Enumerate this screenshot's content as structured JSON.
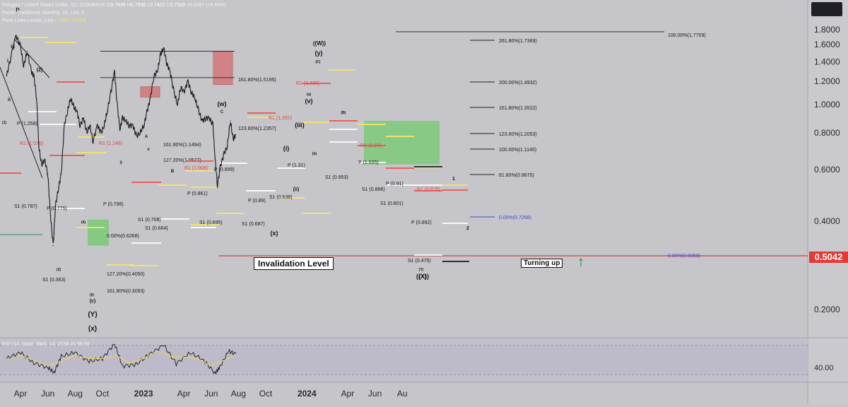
{
  "header": {
    "symbol": "Polygon / United States Dollar, 1D, COINBASE",
    "o_label": "O",
    "o": "0.7436",
    "h_label": "H",
    "h": "0.7936",
    "l_label": "L",
    "l": "0.7422",
    "c_label": "C",
    "c": "0.7933",
    "change": "+0.0497 (+6.68%)",
    "pivot": "Pivots Traditional, Monthly, 15, Left, 2",
    "levels_label": "Pivot Lines Levels (1M)",
    "level_a": "0.9091",
    "level_b": "0.5059"
  },
  "annotations": {
    "invalidation": "Invalidation Level",
    "turning_up": "Turning up",
    "arrow": "↑"
  },
  "current_price_label": "0.5042",
  "colors": {
    "background": "#c5c5ca",
    "price_line": "#1a1a1a",
    "red_line": "#e53935",
    "pivot_yellow": "#f6e66a",
    "pivot_white": "#ffffff",
    "pivot_red": "#f05050",
    "green_box": "#6fca6a",
    "red_box": "#d94c4c",
    "rsi_line": "#1a1a1a",
    "rsi_sma": "#e9d462",
    "rsi_band": "#b7b2c9"
  },
  "chart_data": [
    {
      "type": "line",
      "title": "",
      "y_scale": "log",
      "ylim": [
        0.15,
        2.0
      ],
      "y_ticks": [
        1.8,
        1.6,
        1.4,
        1.2,
        1.0,
        0.8,
        0.6,
        0.4,
        0.2
      ],
      "y_tick_labels": [
        "1.8000",
        "1.6000",
        "1.4000",
        "1.2000",
        "1.0000",
        "0.8000",
        "0.6000",
        "0.4000",
        "0.2000"
      ],
      "x_ticks": [
        "2022-04-01",
        "2022-06-01",
        "2022-08-01",
        "2022-10-01",
        "2023-01-01",
        "2023-04-01",
        "2023-06-01",
        "2023-08-01",
        "2023-10-01",
        "2024-01-01",
        "2024-04-01",
        "2024-06-01",
        "2024-08-01"
      ],
      "x_tick_labels": [
        "Apr",
        "Jun",
        "Aug",
        "Oct",
        "2023",
        "Apr",
        "Jun",
        "Aug",
        "Oct",
        "2024",
        "Apr",
        "Jun",
        "Au"
      ],
      "series": [
        {
          "x": [
            "2022-03-01",
            "2022-03-10",
            "2022-03-22",
            "2022-04-01",
            "2022-04-08",
            "2022-04-16",
            "2022-04-25",
            "2022-05-01",
            "2022-05-07",
            "2022-05-12",
            "2022-05-18",
            "2022-05-25",
            "2022-06-01",
            "2022-06-07",
            "2022-06-13",
            "2022-06-18",
            "2022-06-25",
            "2022-07-01",
            "2022-07-08",
            "2022-07-15",
            "2022-07-22",
            "2022-07-29",
            "2022-08-05",
            "2022-08-12",
            "2022-08-20",
            "2022-08-27",
            "2022-09-03",
            "2022-09-10",
            "2022-09-20",
            "2022-09-28",
            "2022-10-05",
            "2022-10-12",
            "2022-10-20",
            "2022-10-28",
            "2022-11-02",
            "2022-11-09",
            "2022-11-15",
            "2022-11-22",
            "2022-11-30",
            "2022-12-08",
            "2022-12-16",
            "2022-12-24",
            "2023-01-02",
            "2023-01-09",
            "2023-01-16",
            "2023-01-24",
            "2023-02-01",
            "2023-02-08",
            "2023-02-15",
            "2023-02-22",
            "2023-03-01",
            "2023-03-10",
            "2023-03-18",
            "2023-03-25",
            "2023-04-01",
            "2023-04-10",
            "2023-04-18",
            "2023-04-26",
            "2023-05-04",
            "2023-05-12",
            "2023-05-20",
            "2023-05-28",
            "2023-06-05",
            "2023-06-10",
            "2023-06-15",
            "2023-06-22",
            "2023-06-30",
            "2023-07-07",
            "2023-07-14",
            "2023-07-20",
            "2023-07-26"
          ],
          "values": [
            1.25,
            1.45,
            1.72,
            1.58,
            1.35,
            1.52,
            1.3,
            1.25,
            1.05,
            0.72,
            0.62,
            0.65,
            0.58,
            0.42,
            0.33,
            0.45,
            0.52,
            0.58,
            0.85,
            0.95,
            1.05,
            0.98,
            0.95,
            0.85,
            0.9,
            0.8,
            0.85,
            0.75,
            0.85,
            0.8,
            0.85,
            0.95,
            1.1,
            1.3,
            1.05,
            0.82,
            0.9,
            0.88,
            0.85,
            0.85,
            0.78,
            0.8,
            0.85,
            0.95,
            1.05,
            1.25,
            1.3,
            1.48,
            1.56,
            1.38,
            1.3,
            1.1,
            1.0,
            1.15,
            1.1,
            1.2,
            1.1,
            1.05,
            0.95,
            0.88,
            0.9,
            0.9,
            0.85,
            0.65,
            0.53,
            0.62,
            0.68,
            0.72,
            0.88,
            0.76,
            0.79
          ]
        }
      ]
    },
    {
      "type": "line",
      "title": "",
      "legend": "RSI (14, close, SMA, 14, 2) 58.41 56.56",
      "ylim": [
        20,
        80
      ],
      "y_ticks": [
        40
      ],
      "y_tick_labels": [
        "40.00"
      ],
      "series": [
        {
          "x": [
            "2022-03-01",
            "2022-04-01",
            "2022-05-01",
            "2022-06-01",
            "2022-06-15",
            "2022-07-01",
            "2022-08-01",
            "2022-09-01",
            "2022-10-01",
            "2022-10-28",
            "2022-11-15",
            "2022-12-15",
            "2023-01-15",
            "2023-02-15",
            "2023-03-15",
            "2023-04-15",
            "2023-05-15",
            "2023-06-10",
            "2023-06-20",
            "2023-07-10",
            "2023-07-26"
          ],
          "values": [
            52,
            60,
            46,
            40,
            33,
            55,
            60,
            48,
            52,
            72,
            42,
            44,
            58,
            70,
            45,
            60,
            50,
            32,
            40,
            62,
            58
          ]
        },
        {
          "x": [
            "2022-03-01",
            "2022-04-01",
            "2022-05-01",
            "2022-06-01",
            "2022-07-01",
            "2022-08-01",
            "2022-09-01",
            "2022-10-01",
            "2022-11-01",
            "2022-12-01",
            "2023-01-01",
            "2023-02-01",
            "2023-03-01",
            "2023-04-01",
            "2023-05-01",
            "2023-06-01",
            "2023-07-01",
            "2023-07-26"
          ],
          "values": [
            50,
            56,
            50,
            42,
            48,
            56,
            52,
            52,
            56,
            46,
            52,
            62,
            55,
            54,
            52,
            42,
            50,
            57
          ]
        }
      ]
    }
  ],
  "fib_labels": [
    "100.00%(1.7709)",
    "261.80%(1.7369)",
    "200.00%(1.4932)",
    "161.80%(1.3522)",
    "123.60%(1.2053)",
    "100.00%(1.1145)",
    "61.80%(0.9675)",
    "0.00%(0.7298)",
    "0.00%(0.5068)",
    "161.80%(1.5195)",
    "123.60%(1.2357)",
    "161.80%(1.1494)",
    "127.20%(1.0577)",
    "0.00%(0.6268)",
    "127.20%(0.4050)",
    "161.80%(0.3093)"
  ],
  "wave_labels": [
    "((W))",
    "(y)",
    "(w)",
    "(x)",
    "(Y)",
    "(X)",
    "(C)",
    "((X))",
    "(c)",
    "(x)",
    "(v)",
    "(iii)",
    "(i)",
    "(ii)",
    "(b)",
    "(a)",
    "(Y)",
    "(B)",
    "(2)",
    "(1)",
    "(5)",
    "(3)",
    "(4)",
    "iii",
    "v",
    "ii",
    "i",
    "A",
    "B",
    "C",
    "D",
    "3",
    "1",
    "2"
  ],
  "pivot_labels": [
    "S1 (0.787)",
    "S1 (0.363)",
    "S1 (0.708)",
    "S1 (0.664)",
    "S1 (0.695)",
    "S1 (0.687)",
    "S1 (0.638)",
    "S1 (0.953)",
    "S1 (0.886)",
    "S1 (0.801)",
    "S1 (0.475)",
    "P (0.692)",
    "P (0.775)",
    "P (0.798)",
    "P (0.861)",
    "P (0.89)",
    "P (1.035)",
    "P (0.91)",
    "P (1.258)",
    "P (0.899)",
    "P (1.31)",
    "R1 (1.148)",
    "R1 (1.008)",
    "R1 (1.291)",
    "R1 (1.076)",
    "R1 (1.486)",
    "R1 (1.27)",
    "R1 (0.876)"
  ]
}
